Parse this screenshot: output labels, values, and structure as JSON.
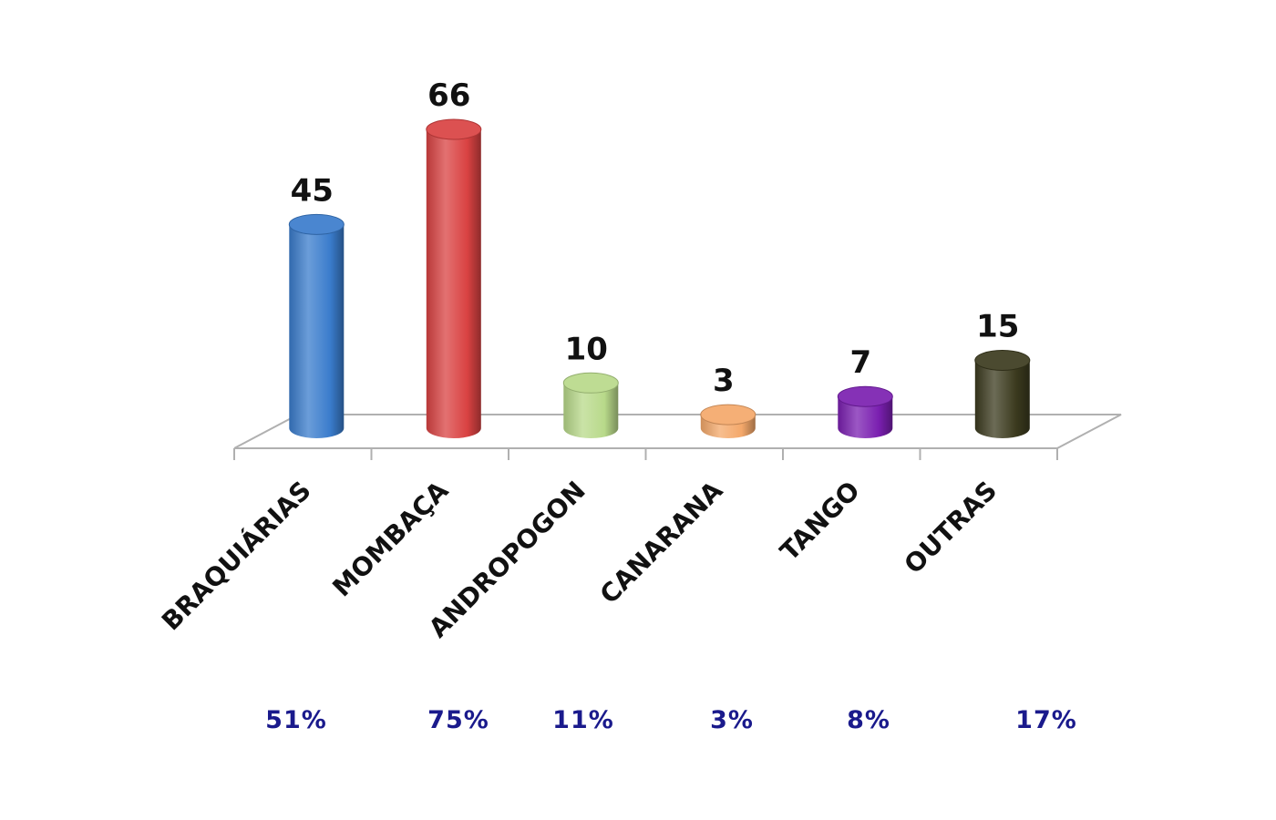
{
  "chart_data": {
    "type": "bar",
    "style": "3d-cylinder",
    "categories": [
      "BRAQUIÁRIAS",
      "MOMBAÇA",
      "ANDROPOGON",
      "CANARANA",
      "TANGO",
      "OUTRAS"
    ],
    "values": [
      45,
      66,
      10,
      3,
      7,
      15
    ],
    "value_labels": [
      "45",
      "66",
      "10",
      "3",
      "7",
      "15"
    ],
    "percent_labels": [
      "51%",
      "75%",
      "11%",
      "3%",
      "8%",
      "17%"
    ],
    "colors": [
      "#3a7ccc",
      "#d94242",
      "#b8d98a",
      "#f4a86a",
      "#7a1fb0",
      "#3b3a1e"
    ],
    "percent_color": "#1a1a8c",
    "ylim": [
      0,
      66
    ],
    "grid": false,
    "legend": "none",
    "title": "",
    "xlabel": "",
    "ylabel": ""
  }
}
